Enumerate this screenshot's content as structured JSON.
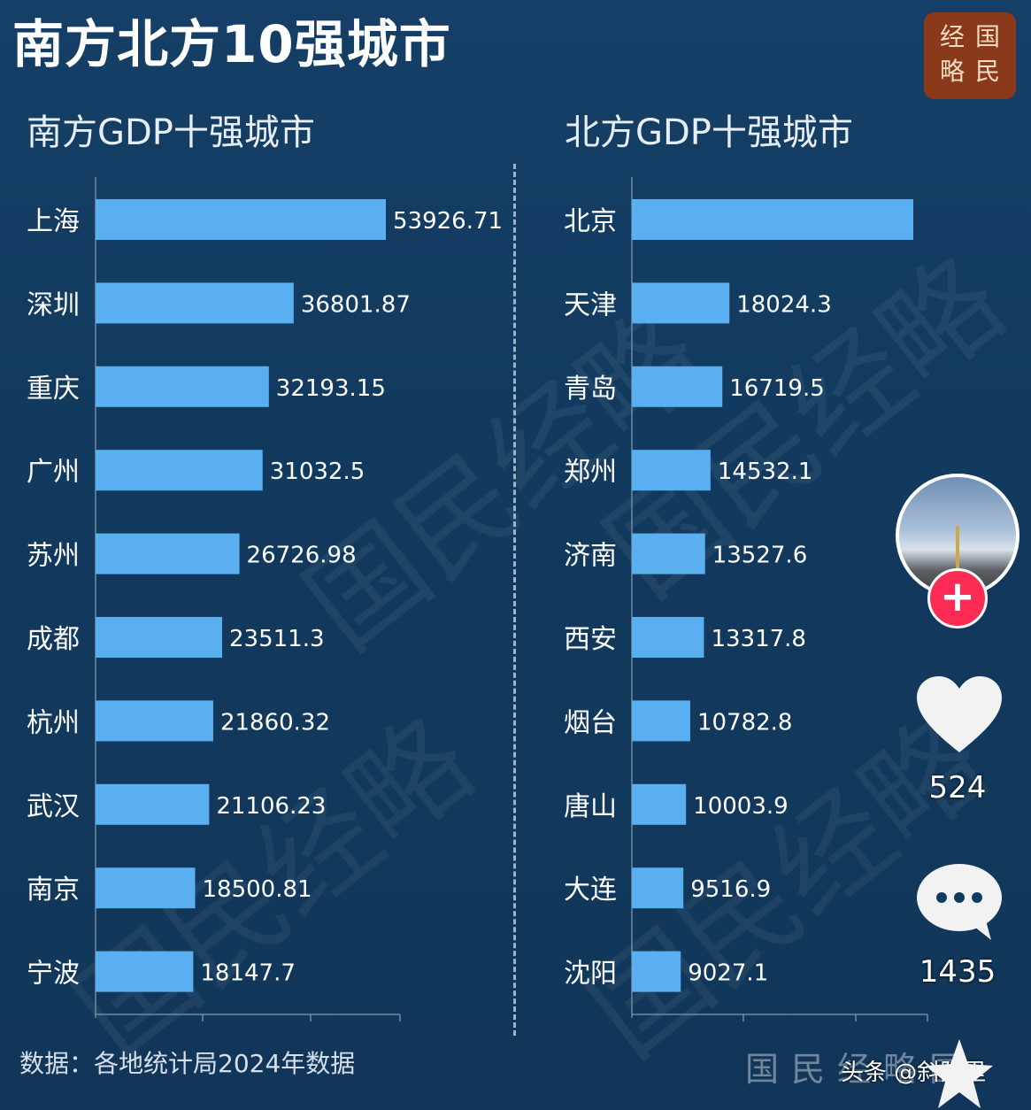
{
  "title": "南方北方10强城市",
  "logo_chars": [
    "经",
    "国",
    "略",
    "民"
  ],
  "footer": "数据：各地统计局2024年数据",
  "watermark_text": "国民经略",
  "watermark_bottom": "国民经略国",
  "toutiao_label": "头条 @斜阳里",
  "social": {
    "likes": "524",
    "comments": "1435"
  },
  "colors": {
    "background": "#123a5e",
    "bar": "#5aaff0"
  },
  "chart_data": [
    {
      "type": "bar",
      "orientation": "horizontal",
      "title": "南方GDP十强城市",
      "categories": [
        "上海",
        "深圳",
        "重庆",
        "广州",
        "苏州",
        "成都",
        "杭州",
        "武汉",
        "南京",
        "宁波"
      ],
      "values": [
        53926.71,
        36801.87,
        32193.15,
        31032.5,
        26726.98,
        23511.3,
        21860.32,
        21106.23,
        18500.81,
        18147.7
      ],
      "labels": [
        "53926.71",
        "36801.87",
        "32193.15",
        "31032.5",
        "26726.98",
        "23511.3",
        "21860.32",
        "21106.23",
        "18500.81",
        "18147.7"
      ],
      "xlim": [
        0,
        60000
      ]
    },
    {
      "type": "bar",
      "orientation": "horizontal",
      "title": "北方GDP十强城市",
      "categories": [
        "北京",
        "天津",
        "青岛",
        "郑州",
        "济南",
        "西安",
        "烟台",
        "唐山",
        "大连",
        "沈阳"
      ],
      "values": [
        52000,
        18024.3,
        16719.5,
        14532.1,
        13527.6,
        13317.8,
        10782.8,
        10003.9,
        9516.9,
        9027.1
      ],
      "labels": [
        "",
        "18024.3",
        "16719.5",
        "14532.1",
        "13527.6",
        "13317.8",
        "10782.8",
        "10003.9",
        "9516.9",
        "9027.1"
      ],
      "xlim": [
        0,
        55000
      ]
    }
  ]
}
